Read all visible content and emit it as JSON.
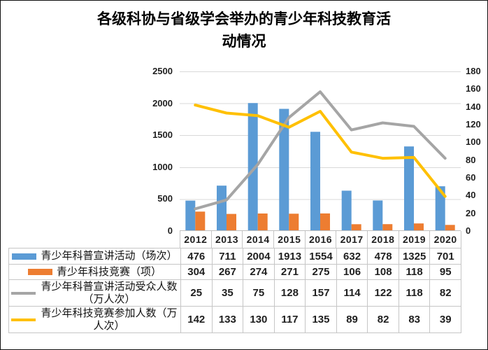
{
  "title": "各级科协与省级学会举办的青少年科技教育活动情况",
  "chart_data": {
    "type": "bar",
    "subtype": "combo-bar-line-dual-axis",
    "title": "各级科协与省级学会举办的青少年科技教育活动情况",
    "categories": [
      "2012",
      "2013",
      "2014",
      "2015",
      "2016",
      "2017",
      "2018",
      "2019",
      "2020"
    ],
    "series": [
      {
        "name": "青少年科普宣讲活动（场次）",
        "type": "bar",
        "axis": "left",
        "color": "#5B9BD5",
        "values": [
          476,
          711,
          2004,
          1913,
          1554,
          632,
          478,
          1325,
          701
        ]
      },
      {
        "name": "青少年科技竞赛（项）",
        "type": "bar",
        "axis": "left",
        "color": "#ED7D31",
        "values": [
          304,
          267,
          274,
          271,
          275,
          106,
          108,
          118,
          95
        ]
      },
      {
        "name": "青少年科普宣讲活动受众人数（万人次）",
        "type": "line",
        "axis": "right",
        "color": "#A5A5A5",
        "values": [
          25,
          35,
          75,
          128,
          157,
          114,
          122,
          118,
          82
        ]
      },
      {
        "name": "青少年科技竞赛参加人数（万人次）",
        "type": "line",
        "axis": "right",
        "color": "#FFC000",
        "values": [
          142,
          133,
          130,
          117,
          135,
          89,
          82,
          83,
          39
        ]
      }
    ],
    "left_axis": {
      "min": 0,
      "max": 2500,
      "step": 500,
      "ticks": [
        "0",
        "500",
        "1000",
        "1500",
        "2000",
        "2500"
      ]
    },
    "right_axis": {
      "min": 0,
      "max": 180,
      "step": 20,
      "ticks": [
        "0",
        "20",
        "40",
        "60",
        "80",
        "100",
        "120",
        "140",
        "160",
        "180"
      ]
    },
    "grid": true,
    "legend_position": "data-table-below-chart",
    "colors": {
      "grid": "#D9D9D9",
      "axis_line": "#BFBFBF",
      "table_border": "#C6C6C6",
      "text": "#1f1f1f",
      "frame_border": "#111111"
    }
  }
}
